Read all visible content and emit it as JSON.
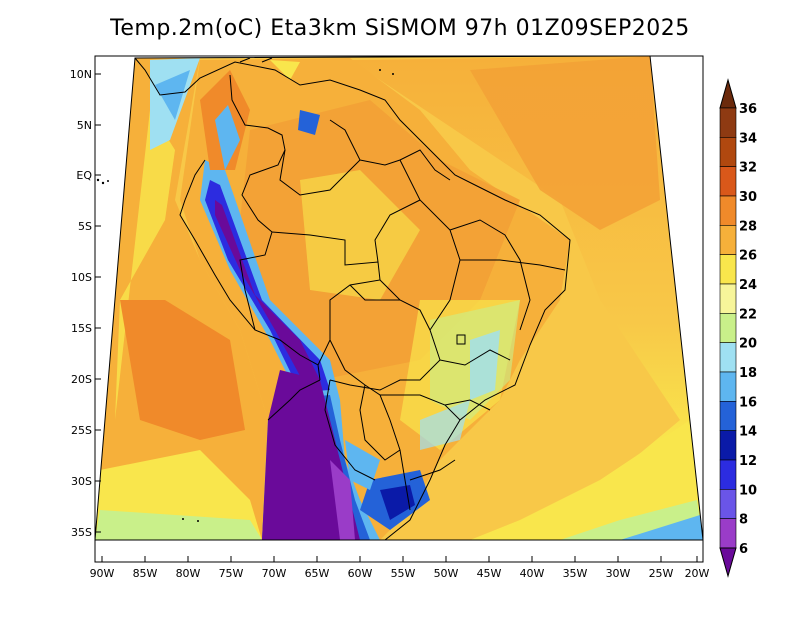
{
  "title": "Temp.2m(oC) Eta3km SiSMOM 97h 01Z09SEP2025",
  "variable": "Temp.2m",
  "units": "oC",
  "model": "Eta3km SiSMOM",
  "forecast_hour": "97h",
  "valid_time": "01Z09SEP2025",
  "axes": {
    "lat_labels": [
      "10N",
      "5N",
      "EQ",
      "5S",
      "10S",
      "15S",
      "20S",
      "25S",
      "30S",
      "35S"
    ],
    "lon_labels": [
      "90W",
      "85W",
      "80W",
      "75W",
      "70W",
      "65W",
      "60W",
      "55W",
      "50W",
      "45W",
      "40W",
      "35W",
      "30W",
      "25W",
      "20W"
    ]
  },
  "colorbar": {
    "labels": [
      "36",
      "34",
      "32",
      "30",
      "28",
      "26",
      "24",
      "22",
      "20",
      "18",
      "16",
      "14",
      "12",
      "10",
      "8",
      "6"
    ],
    "colors": [
      "#6b2a0c",
      "#8e3a12",
      "#b0480f",
      "#d9581a",
      "#f08a2a",
      "#f6b03a",
      "#f9e64c",
      "#f7f59a",
      "#c9f08a",
      "#9fe0f2",
      "#5eb6f0",
      "#2462d8",
      "#0a1aa8",
      "#2c2ce0",
      "#6a55e8",
      "#9a3cc8",
      "#6a0a9a"
    ]
  }
}
